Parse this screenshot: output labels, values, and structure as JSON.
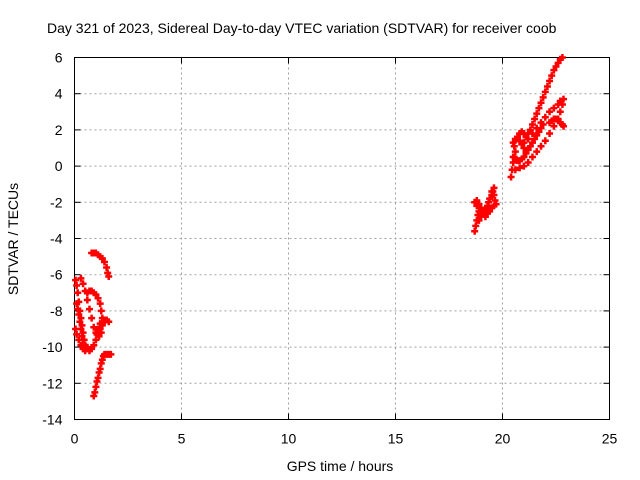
{
  "chart_data": {
    "type": "scatter",
    "title": "Day 321 of 2023, Sidereal Day-to-day VTEC variation (SDTVAR) for receiver coob",
    "xlabel": "GPS time / hours",
    "ylabel": "SDTVAR / TECUs",
    "xlim": [
      0,
      25
    ],
    "ylim": [
      -14,
      6
    ],
    "xticks": [
      "0",
      "5",
      "10",
      "15",
      "20",
      "25"
    ],
    "yticks": [
      "-14",
      "-12",
      "-10",
      "-8",
      "-6",
      "-4",
      "-2",
      "0",
      "2",
      "4",
      "6"
    ],
    "grid": true,
    "marker": "+",
    "series": [
      {
        "color": "#ff0000",
        "points": [
          [
            0.05,
            -6.3
          ],
          [
            0.1,
            -6.6
          ],
          [
            0.15,
            -7.0
          ],
          [
            0.2,
            -7.5
          ],
          [
            0.25,
            -8.0
          ],
          [
            0.3,
            -8.4
          ],
          [
            0.35,
            -8.8
          ],
          [
            0.4,
            -9.2
          ],
          [
            0.45,
            -9.6
          ],
          [
            0.5,
            -9.9
          ],
          [
            0.6,
            -10.1
          ],
          [
            0.7,
            -10.2
          ],
          [
            0.8,
            -10.1
          ],
          [
            0.9,
            -9.9
          ],
          [
            1.0,
            -9.6
          ],
          [
            1.1,
            -9.3
          ],
          [
            1.2,
            -9.0
          ],
          [
            1.3,
            -8.7
          ],
          [
            1.4,
            -8.5
          ],
          [
            1.5,
            -8.5
          ],
          [
            0.05,
            -9.0
          ],
          [
            0.1,
            -9.3
          ],
          [
            0.2,
            -9.6
          ],
          [
            0.3,
            -9.9
          ],
          [
            0.4,
            -10.1
          ],
          [
            0.5,
            -10.2
          ],
          [
            0.6,
            -10.0
          ],
          [
            0.1,
            -7.6
          ],
          [
            0.15,
            -7.9
          ],
          [
            0.2,
            -8.2
          ],
          [
            0.25,
            -8.6
          ],
          [
            0.3,
            -9.0
          ],
          [
            0.35,
            -9.4
          ],
          [
            0.4,
            -9.8
          ],
          [
            0.3,
            -6.2
          ],
          [
            0.4,
            -6.5
          ],
          [
            0.5,
            -6.9
          ],
          [
            0.6,
            -7.4
          ],
          [
            0.7,
            -7.9
          ],
          [
            0.8,
            -8.4
          ],
          [
            0.9,
            -8.9
          ],
          [
            1.0,
            -9.2
          ],
          [
            1.1,
            -9.0
          ],
          [
            1.2,
            -8.7
          ],
          [
            1.3,
            -8.6
          ],
          [
            1.4,
            -8.6
          ],
          [
            1.5,
            -8.5
          ],
          [
            1.6,
            -8.6
          ],
          [
            0.6,
            -7.0
          ],
          [
            0.7,
            -6.9
          ],
          [
            0.8,
            -6.9
          ],
          [
            0.9,
            -7.0
          ],
          [
            1.0,
            -7.1
          ],
          [
            1.1,
            -7.3
          ],
          [
            1.2,
            -7.6
          ],
          [
            1.25,
            -8.0
          ],
          [
            1.3,
            -8.4
          ],
          [
            1.3,
            -8.8
          ],
          [
            1.25,
            -9.2
          ],
          [
            1.15,
            -9.4
          ],
          [
            1.05,
            -9.3
          ],
          [
            0.8,
            -4.8
          ],
          [
            0.9,
            -4.8
          ],
          [
            1.0,
            -4.8
          ],
          [
            1.1,
            -4.9
          ],
          [
            1.2,
            -5.0
          ],
          [
            1.3,
            -5.1
          ],
          [
            1.4,
            -5.3
          ],
          [
            1.5,
            -5.6
          ],
          [
            1.55,
            -5.9
          ],
          [
            1.6,
            -6.1
          ],
          [
            0.9,
            -12.7
          ],
          [
            0.95,
            -12.5
          ],
          [
            1.0,
            -12.2
          ],
          [
            1.05,
            -11.9
          ],
          [
            1.1,
            -11.7
          ],
          [
            1.15,
            -11.4
          ],
          [
            1.2,
            -11.2
          ],
          [
            1.25,
            -10.9
          ],
          [
            1.3,
            -10.7
          ],
          [
            1.35,
            -10.5
          ],
          [
            1.4,
            -10.4
          ],
          [
            1.5,
            -10.4
          ],
          [
            1.6,
            -10.4
          ],
          [
            1.7,
            -10.4
          ],
          [
            18.7,
            -3.6
          ],
          [
            18.75,
            -3.3
          ],
          [
            18.8,
            -3.0
          ],
          [
            18.85,
            -2.7
          ],
          [
            18.9,
            -2.5
          ],
          [
            18.8,
            -2.2
          ],
          [
            18.7,
            -2.0
          ],
          [
            18.8,
            -1.9
          ],
          [
            18.9,
            -2.1
          ],
          [
            19.0,
            -2.3
          ],
          [
            19.1,
            -2.5
          ],
          [
            19.2,
            -2.4
          ],
          [
            19.3,
            -2.2
          ],
          [
            19.35,
            -2.0
          ],
          [
            19.4,
            -1.8
          ],
          [
            19.5,
            -1.6
          ],
          [
            19.55,
            -1.4
          ],
          [
            19.6,
            -1.2
          ],
          [
            19.5,
            -1.4
          ],
          [
            18.9,
            -3.0
          ],
          [
            19.0,
            -2.8
          ],
          [
            19.1,
            -2.6
          ],
          [
            19.2,
            -2.8
          ],
          [
            19.3,
            -2.6
          ],
          [
            19.4,
            -2.5
          ],
          [
            19.5,
            -2.3
          ],
          [
            19.6,
            -2.2
          ],
          [
            19.7,
            -2.1
          ],
          [
            19.65,
            -1.9
          ],
          [
            19.6,
            -1.6
          ],
          [
            20.4,
            -0.6
          ],
          [
            20.45,
            -0.2
          ],
          [
            20.5,
            0.2
          ],
          [
            20.55,
            0.5
          ],
          [
            20.6,
            0.8
          ],
          [
            20.55,
            1.1
          ],
          [
            20.5,
            1.3
          ],
          [
            20.6,
            1.5
          ],
          [
            20.7,
            1.5
          ],
          [
            20.8,
            1.4
          ],
          [
            20.9,
            1.2
          ],
          [
            21.0,
            1.0
          ],
          [
            21.1,
            0.8
          ],
          [
            20.5,
            0.5
          ],
          [
            20.6,
            0.4
          ],
          [
            20.7,
            0.3
          ],
          [
            20.8,
            0.3
          ],
          [
            20.9,
            0.4
          ],
          [
            21.0,
            0.5
          ],
          [
            21.1,
            0.7
          ],
          [
            21.2,
            0.9
          ],
          [
            21.3,
            1.1
          ],
          [
            21.4,
            1.3
          ],
          [
            21.5,
            1.5
          ],
          [
            21.6,
            1.7
          ],
          [
            21.7,
            1.9
          ],
          [
            21.8,
            2.1
          ],
          [
            21.9,
            2.3
          ],
          [
            20.6,
            -0.2
          ],
          [
            20.8,
            -0.1
          ],
          [
            21.0,
            0.0
          ],
          [
            21.2,
            0.2
          ],
          [
            21.4,
            0.5
          ],
          [
            21.6,
            0.8
          ],
          [
            21.8,
            1.1
          ],
          [
            22.0,
            1.4
          ],
          [
            22.2,
            1.8
          ],
          [
            22.4,
            2.2
          ],
          [
            22.6,
            2.6
          ],
          [
            22.7,
            3.0
          ],
          [
            22.8,
            3.4
          ],
          [
            22.85,
            3.7
          ],
          [
            20.7,
            1.6
          ],
          [
            20.8,
            1.8
          ],
          [
            20.9,
            1.9
          ],
          [
            21.0,
            1.8
          ],
          [
            21.1,
            1.6
          ],
          [
            21.2,
            1.8
          ],
          [
            21.3,
            2.0
          ],
          [
            21.4,
            2.3
          ],
          [
            21.5,
            2.6
          ],
          [
            21.6,
            2.9
          ],
          [
            21.7,
            3.2
          ],
          [
            21.8,
            3.5
          ],
          [
            21.9,
            3.8
          ],
          [
            22.0,
            4.1
          ],
          [
            22.1,
            4.4
          ],
          [
            22.2,
            4.7
          ],
          [
            22.3,
            5.0
          ],
          [
            22.4,
            5.3
          ],
          [
            22.5,
            5.5
          ],
          [
            22.6,
            5.7
          ],
          [
            22.7,
            5.9
          ],
          [
            22.8,
            6.0
          ],
          [
            21.0,
            1.3
          ],
          [
            21.2,
            1.5
          ],
          [
            21.4,
            1.8
          ],
          [
            21.6,
            2.1
          ],
          [
            21.8,
            2.4
          ],
          [
            22.0,
            2.7
          ],
          [
            22.2,
            3.0
          ],
          [
            22.4,
            3.2
          ],
          [
            22.6,
            3.4
          ],
          [
            22.7,
            3.6
          ],
          [
            22.2,
            2.4
          ],
          [
            22.3,
            2.5
          ],
          [
            22.4,
            2.6
          ],
          [
            22.5,
            2.6
          ],
          [
            22.6,
            2.5
          ],
          [
            22.7,
            2.4
          ],
          [
            22.8,
            2.3
          ],
          [
            22.85,
            2.2
          ]
        ]
      }
    ]
  }
}
